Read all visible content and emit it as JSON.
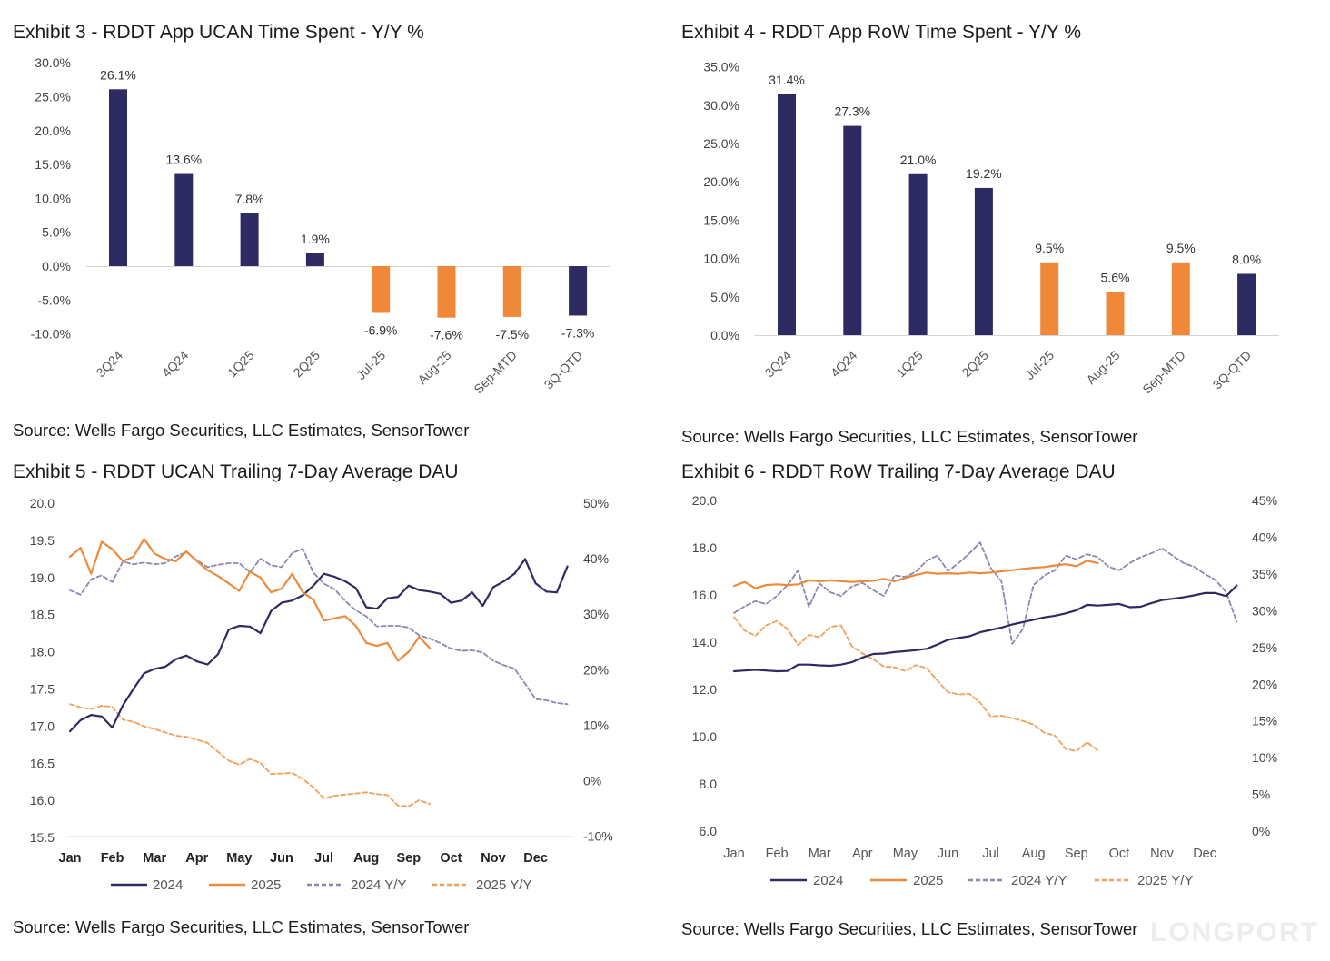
{
  "chart_data": [
    {
      "type": "bar",
      "title": "Exhibit 3 - RDDT App UCAN Time Spent - Y/Y %",
      "categories": [
        "3Q24",
        "4Q24",
        "1Q25",
        "2Q25",
        "Jul-25",
        "Aug-25",
        "Sep-MTD",
        "3Q-QTD"
      ],
      "values": [
        26.1,
        13.6,
        7.8,
        1.9,
        -6.9,
        -7.6,
        -7.5,
        -7.3
      ],
      "data_labels": [
        "26.1%",
        "13.6%",
        "7.8%",
        "1.9%",
        "-6.9%",
        "-7.6%",
        "-7.5%",
        "-7.3%"
      ],
      "colors": [
        "#2E2A62",
        "#2E2A62",
        "#2E2A62",
        "#2E2A62",
        "#F0883A",
        "#F0883A",
        "#F0883A",
        "#2E2A62"
      ],
      "ylim": [
        -10,
        30
      ],
      "yticks": [
        -10,
        -5,
        0,
        5,
        10,
        15,
        20,
        25,
        30
      ],
      "ytick_labels": [
        "-10.0%",
        "-5.0%",
        "0.0%",
        "5.0%",
        "10.0%",
        "15.0%",
        "20.0%",
        "25.0%",
        "30.0%"
      ],
      "grid": false,
      "source": "Source: Wells Fargo Securities, LLC Estimates, SensorTower"
    },
    {
      "type": "bar",
      "title": "Exhibit 4 - RDDT App RoW Time Spent - Y/Y %",
      "categories": [
        "3Q24",
        "4Q24",
        "1Q25",
        "2Q25",
        "Jul-25",
        "Aug-25",
        "Sep-MTD",
        "3Q-QTD"
      ],
      "values": [
        31.4,
        27.3,
        21.0,
        19.2,
        9.5,
        5.6,
        9.5,
        8.0
      ],
      "data_labels": [
        "31.4%",
        "27.3%",
        "21.0%",
        "19.2%",
        "9.5%",
        "5.6%",
        "9.5%",
        "8.0%"
      ],
      "colors": [
        "#2E2A62",
        "#2E2A62",
        "#2E2A62",
        "#2E2A62",
        "#F0883A",
        "#F0883A",
        "#F0883A",
        "#2E2A62"
      ],
      "ylim": [
        0,
        35
      ],
      "yticks": [
        0,
        5,
        10,
        15,
        20,
        25,
        30,
        35
      ],
      "ytick_labels": [
        "0.0%",
        "5.0%",
        "10.0%",
        "15.0%",
        "20.0%",
        "25.0%",
        "30.0%",
        "35.0%"
      ],
      "grid": false,
      "source": "Source: Wells Fargo Securities, LLC Estimates, SensorTower"
    },
    {
      "type": "line",
      "title": "Exhibit 5 - RDDT UCAN Trailing 7-Day Average DAU",
      "x_labels": [
        "Jan",
        "Feb",
        "Mar",
        "Apr",
        "May",
        "Jun",
        "Jul",
        "Aug",
        "Sep",
        "Oct",
        "Nov",
        "Dec"
      ],
      "x_ticks": [
        0,
        1,
        2,
        3,
        4,
        5,
        6,
        7,
        8,
        9,
        10,
        11
      ],
      "left_ylim": [
        15.5,
        20.0
      ],
      "left_ticks": [
        15.5,
        16.0,
        16.5,
        17.0,
        17.5,
        18.0,
        18.5,
        19.0,
        19.5,
        20.0
      ],
      "left_tick_labels": [
        "15.5",
        "16.0",
        "16.5",
        "17.0",
        "17.5",
        "18.0",
        "18.5",
        "19.0",
        "19.5",
        "20.0"
      ],
      "right_ylim": [
        -10,
        50
      ],
      "right_ticks": [
        -10,
        0,
        10,
        20,
        30,
        40,
        50
      ],
      "right_tick_labels": [
        "-10%",
        "0%",
        "10%",
        "20%",
        "30%",
        "40%",
        "50%"
      ],
      "grid": false,
      "series": [
        {
          "name": "2024",
          "right_axis": false,
          "dashed": false,
          "color": "#2E2A62",
          "x_start": 0,
          "x_step": 0.25,
          "values": [
            16.93,
            17.08,
            17.15,
            17.13,
            16.98,
            17.28,
            17.5,
            17.71,
            17.77,
            17.8,
            17.9,
            17.95,
            17.87,
            17.83,
            17.97,
            18.3,
            18.35,
            18.34,
            18.25,
            18.55,
            18.66,
            18.69,
            18.76,
            18.89,
            19.05,
            19.01,
            18.95,
            18.86,
            18.6,
            18.58,
            18.72,
            18.74,
            18.89,
            18.83,
            18.81,
            18.78,
            18.66,
            18.69,
            18.8,
            18.62,
            18.87,
            18.95,
            19.05,
            19.25,
            18.92,
            18.81,
            18.8,
            19.15
          ]
        },
        {
          "name": "2025",
          "right_axis": false,
          "dashed": false,
          "color": "#EC8A3E",
          "x_start": 0,
          "x_step": 0.25,
          "values": [
            19.28,
            19.4,
            19.05,
            19.48,
            19.38,
            19.22,
            19.28,
            19.52,
            19.32,
            19.25,
            19.22,
            19.35,
            19.22,
            19.1,
            19.02,
            18.92,
            18.82,
            19.08,
            19.0,
            18.8,
            18.85,
            19.05,
            18.8,
            18.7,
            18.42,
            18.45,
            18.48,
            18.35,
            18.12,
            18.08,
            18.12,
            17.88,
            18.0,
            18.2,
            18.05
          ]
        },
        {
          "name": "2024 Y/Y",
          "right_axis": true,
          "dashed": true,
          "color": "#8B88AD",
          "x_start": 0,
          "x_step": 0.25,
          "values": [
            34.3,
            33.5,
            36.3,
            37.0,
            35.8,
            39.5,
            39.0,
            39.3,
            39.0,
            39.2,
            40.4,
            41.2,
            39.7,
            38.5,
            38.9,
            39.2,
            39.2,
            37.6,
            40.0,
            38.8,
            38.5,
            41.0,
            41.8,
            37.5,
            35.5,
            34.5,
            32.4,
            30.7,
            29.6,
            27.8,
            27.9,
            27.9,
            27.6,
            26.2,
            25.6,
            24.8,
            23.8,
            23.4,
            23.5,
            23.1,
            21.6,
            20.8,
            20.2,
            17.5,
            14.7,
            14.5,
            14.0,
            13.8
          ]
        },
        {
          "name": "2025 Y/Y",
          "right_axis": true,
          "dashed": true,
          "color": "#EFA05A",
          "x_start": 0,
          "x_step": 0.25,
          "values": [
            13.8,
            13.2,
            12.9,
            13.5,
            13.3,
            11.0,
            10.6,
            9.8,
            9.3,
            8.7,
            8.1,
            7.9,
            7.4,
            6.8,
            5.2,
            3.6,
            2.9,
            3.9,
            3.2,
            1.2,
            1.3,
            1.4,
            0.3,
            -1.2,
            -3.2,
            -2.7,
            -2.5,
            -2.3,
            -2.1,
            -2.4,
            -2.6,
            -4.5,
            -4.6,
            -3.5,
            -4.2
          ]
        }
      ],
      "source": "Source: Wells Fargo Securities, LLC Estimates, SensorTower"
    },
    {
      "type": "line",
      "title": "Exhibit 6 - RDDT RoW Trailing 7-Day Average DAU",
      "x_labels": [
        "Jan",
        "Feb",
        "Mar",
        "Apr",
        "May",
        "Jun",
        "Jul",
        "Aug",
        "Sep",
        "Oct",
        "Nov",
        "Dec"
      ],
      "x_ticks": [
        0,
        1,
        2,
        3,
        4,
        5,
        6,
        7,
        8,
        9,
        10,
        11
      ],
      "left_ylim": [
        6.0,
        20.0
      ],
      "left_ticks": [
        6,
        8,
        10,
        12,
        14,
        16,
        18,
        20
      ],
      "left_tick_labels": [
        "6.0",
        "8.0",
        "10.0",
        "12.0",
        "14.0",
        "16.0",
        "18.0",
        "20.0"
      ],
      "right_ylim": [
        0,
        45
      ],
      "right_ticks": [
        0,
        5,
        10,
        15,
        20,
        25,
        30,
        35,
        40,
        45
      ],
      "right_tick_labels": [
        "0%",
        "5%",
        "10%",
        "15%",
        "20%",
        "25%",
        "30%",
        "35%",
        "40%",
        "45%"
      ],
      "grid": false,
      "series": [
        {
          "name": "2024",
          "right_axis": false,
          "dashed": false,
          "color": "#2E2A62",
          "x_start": 0,
          "x_step": 0.25,
          "values": [
            12.77,
            12.8,
            12.83,
            12.8,
            12.77,
            12.78,
            13.05,
            13.05,
            13.02,
            13.0,
            13.05,
            13.15,
            13.35,
            13.5,
            13.52,
            13.58,
            13.62,
            13.66,
            13.72,
            13.9,
            14.1,
            14.18,
            14.25,
            14.42,
            14.52,
            14.62,
            14.75,
            14.85,
            14.95,
            15.05,
            15.12,
            15.22,
            15.35,
            15.58,
            15.55,
            15.58,
            15.62,
            15.48,
            15.5,
            15.65,
            15.78,
            15.84,
            15.9,
            15.98,
            16.08,
            16.08,
            15.95,
            16.4
          ]
        },
        {
          "name": "2025",
          "right_axis": false,
          "dashed": false,
          "color": "#EC8A3E",
          "x_start": 0,
          "x_step": 0.25,
          "values": [
            16.38,
            16.55,
            16.28,
            16.42,
            16.45,
            16.42,
            16.45,
            16.62,
            16.58,
            16.62,
            16.58,
            16.55,
            16.58,
            16.6,
            16.68,
            16.58,
            16.72,
            16.85,
            16.95,
            16.9,
            16.92,
            16.9,
            16.95,
            16.92,
            16.95,
            17.0,
            17.05,
            17.1,
            17.15,
            17.18,
            17.25,
            17.3,
            17.22,
            17.45,
            17.35
          ]
        },
        {
          "name": "2024 Y/Y",
          "right_axis": true,
          "dashed": true,
          "color": "#8B88AD",
          "x_start": 0,
          "x_step": 0.25,
          "values": [
            29.7,
            30.6,
            31.3,
            30.9,
            32.0,
            33.5,
            35.5,
            30.5,
            33.7,
            32.5,
            32.0,
            33.3,
            33.8,
            32.8,
            32.0,
            34.8,
            34.6,
            35.3,
            36.8,
            37.5,
            35.4,
            36.5,
            37.8,
            39.3,
            35.8,
            34.0,
            25.5,
            27.5,
            33.5,
            34.8,
            35.5,
            37.5,
            37.0,
            37.7,
            37.3,
            36.0,
            35.5,
            36.5,
            37.3,
            37.8,
            38.5,
            37.5,
            36.5,
            36.0,
            35.0,
            34.2,
            32.5,
            28.5
          ]
        },
        {
          "name": "2025 Y/Y",
          "right_axis": true,
          "dashed": true,
          "color": "#EFA05A",
          "x_start": 0,
          "x_step": 0.25,
          "values": [
            29.1,
            27.3,
            26.6,
            28.0,
            28.6,
            27.5,
            25.3,
            26.7,
            26.4,
            27.8,
            28.0,
            25.2,
            24.2,
            23.4,
            22.4,
            22.3,
            21.8,
            22.6,
            22.2,
            20.5,
            18.9,
            18.6,
            18.7,
            17.5,
            15.6,
            15.7,
            15.4,
            15.0,
            14.5,
            13.4,
            13.0,
            11.2,
            10.9,
            12.1,
            11.0
          ]
        }
      ],
      "source": "Source: Wells Fargo Securities, LLC Estimates, SensorTower"
    }
  ],
  "watermark": "LONGPORT"
}
